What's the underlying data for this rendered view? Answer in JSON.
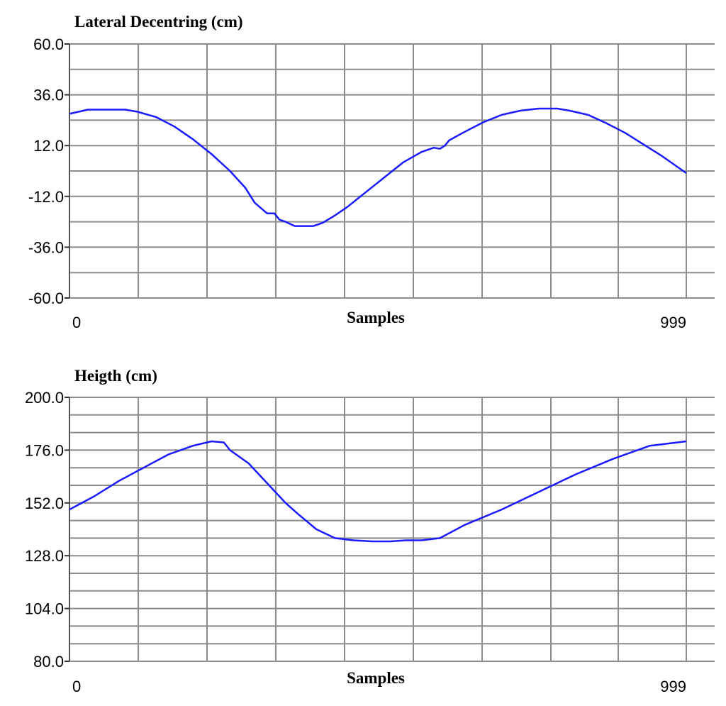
{
  "chart_data": [
    {
      "type": "line",
      "title": "Lateral Decentring (cm)",
      "xlabel": "Samples",
      "ylabel": "",
      "xlim": [
        0,
        999
      ],
      "ylim": [
        -60,
        60
      ],
      "x_tick_labels": [
        "0",
        "999"
      ],
      "y_tick_labels": [
        "60.0",
        "36.0",
        "12.0",
        "-12.0",
        "-36.0",
        "-60.0"
      ],
      "y_ticks": [
        60,
        36,
        12,
        -12,
        -36,
        -60
      ],
      "grid": true,
      "line_color": "#1a1aff",
      "series": [
        {
          "x": [
            0,
            30,
            60,
            90,
            110,
            140,
            170,
            200,
            230,
            260,
            285,
            300,
            320,
            332,
            340,
            350,
            365,
            380,
            395,
            410,
            430,
            450,
            480,
            510,
            540,
            570,
            590,
            600,
            608,
            615,
            640,
            670,
            700,
            730,
            760,
            790,
            810,
            840,
            870,
            900,
            930,
            960,
            999
          ],
          "y": [
            27,
            29,
            29,
            29,
            28,
            25.5,
            21,
            15,
            8,
            0,
            -8,
            -15,
            -20,
            -20,
            -23,
            -24,
            -26,
            -26,
            -26,
            -24.5,
            -21,
            -17,
            -10,
            -3,
            4,
            9,
            11,
            10.5,
            12,
            14.5,
            18.5,
            23,
            26.5,
            28.5,
            29.5,
            29.5,
            28.5,
            26.5,
            22.5,
            18,
            12.5,
            7,
            -1
          ]
        }
      ]
    },
    {
      "type": "line",
      "title": "Heigth (cm)",
      "xlabel": "Samples",
      "ylabel": "",
      "xlim": [
        0,
        999
      ],
      "ylim": [
        80,
        200
      ],
      "x_tick_labels": [
        "0",
        "999"
      ],
      "y_tick_labels": [
        "200.0",
        "176.0",
        "152.0",
        "128.0",
        "104.0",
        "80.0"
      ],
      "y_ticks": [
        200,
        176,
        152,
        128,
        104,
        80
      ],
      "grid": true,
      "line_color": "#1a1aff",
      "series": [
        {
          "x": [
            0,
            40,
            80,
            120,
            160,
            200,
            230,
            250,
            260,
            290,
            320,
            350,
            370,
            400,
            430,
            460,
            490,
            520,
            545,
            570,
            600,
            620,
            640,
            700,
            760,
            820,
            880,
            940,
            999
          ],
          "y": [
            149,
            155,
            162,
            168,
            174,
            178,
            180,
            179.5,
            176,
            170,
            161,
            152,
            147,
            140,
            136,
            135,
            134.5,
            134.5,
            135,
            135,
            136,
            139,
            142,
            149,
            157,
            165,
            172,
            178,
            180
          ]
        }
      ]
    }
  ]
}
